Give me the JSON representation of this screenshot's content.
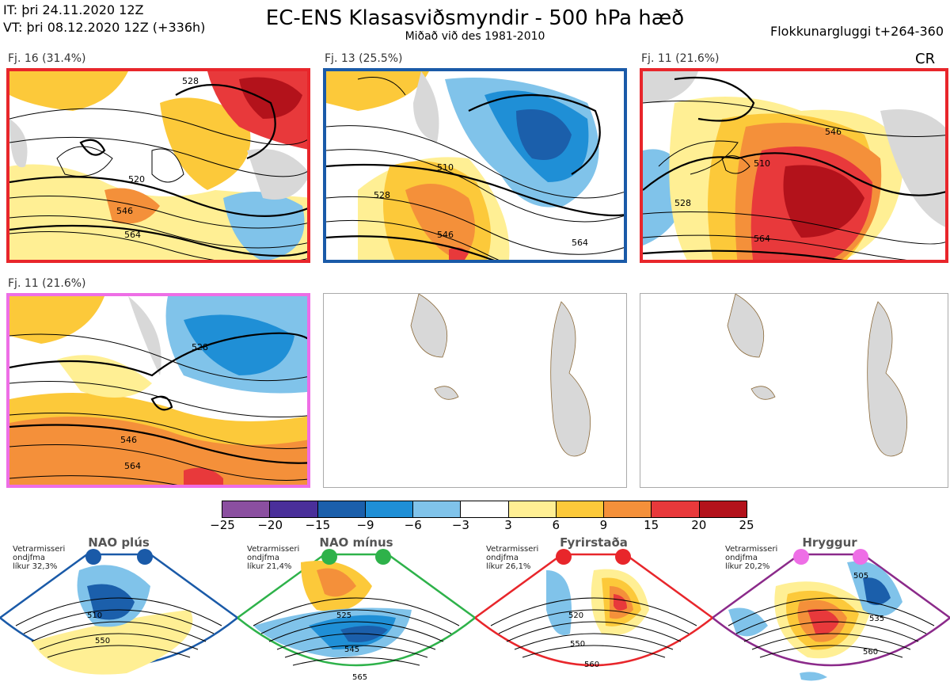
{
  "header": {
    "it_line": "IT: þri 24.11.2020 12Z",
    "vt_line": "VT: þri 08.12.2020 12Z  (+336h)",
    "title": "EC-ENS Klasasviðsmyndir - 500 hPa hæð",
    "subtitle": "Miðað við des 1981-2010",
    "window": "Flokkunargluggi t+264-360",
    "corner_tag": "CR"
  },
  "panels": [
    {
      "label": "Fj. 16 (31.4%)",
      "frame_color": "#e8262b",
      "contours": [
        "520",
        "528",
        "546",
        "564"
      ]
    },
    {
      "label": "Fj. 13 (25.5%)",
      "frame_color": "#1a5aa8",
      "contours": [
        "510",
        "528",
        "546",
        "564"
      ]
    },
    {
      "label": "Fj. 11 (21.6%)",
      "frame_color": "#e8262b",
      "contours": [
        "510",
        "528",
        "546",
        "564"
      ]
    },
    {
      "label": "Fj. 11 (21.6%)",
      "frame_color": "#ee6ee6",
      "contours": [
        "528",
        "546",
        "564"
      ]
    },
    {
      "label": "",
      "frame_color": "#aaaaaa",
      "contours": []
    },
    {
      "label": "",
      "frame_color": "#aaaaaa",
      "contours": []
    }
  ],
  "colorbar": {
    "ticks": [
      "−25",
      "−20",
      "−15",
      "−9",
      "−6",
      "−3",
      "3",
      "6",
      "9",
      "15",
      "20",
      "25"
    ],
    "colors": [
      "#8b4fa0",
      "#4a2f9a",
      "#1b5fab",
      "#1f8fd6",
      "#80c3ea",
      "#ffffff",
      "#ffef94",
      "#fcc93a",
      "#f4903a",
      "#e8393b",
      "#b3121b"
    ]
  },
  "regimes": [
    {
      "name": "NAO plús",
      "info": [
        "Vetrarmisseri",
        "ondjfma",
        "líkur 32,3%"
      ],
      "color": "#1a5aa8",
      "contours": [
        "510",
        "550"
      ]
    },
    {
      "name": "NAO mínus",
      "info": [
        "Vetrarmisseri",
        "ondjfma",
        "líkur 21,4%"
      ],
      "color": "#2eb24a",
      "contours": [
        "525",
        "545",
        "565"
      ]
    },
    {
      "name": "Fyrirstaða",
      "info": [
        "Vetrarmisseri",
        "ondjfma",
        "líkur 26,1%"
      ],
      "color": "#e8262b",
      "contours": [
        "520",
        "550",
        "560"
      ]
    },
    {
      "name": "Hryggur",
      "info": [
        "Vetrarmisseri",
        "ondjfma",
        "líkur 20,2%"
      ],
      "color": "#ee6ee6",
      "contours": [
        "505",
        "535",
        "560"
      ]
    }
  ]
}
